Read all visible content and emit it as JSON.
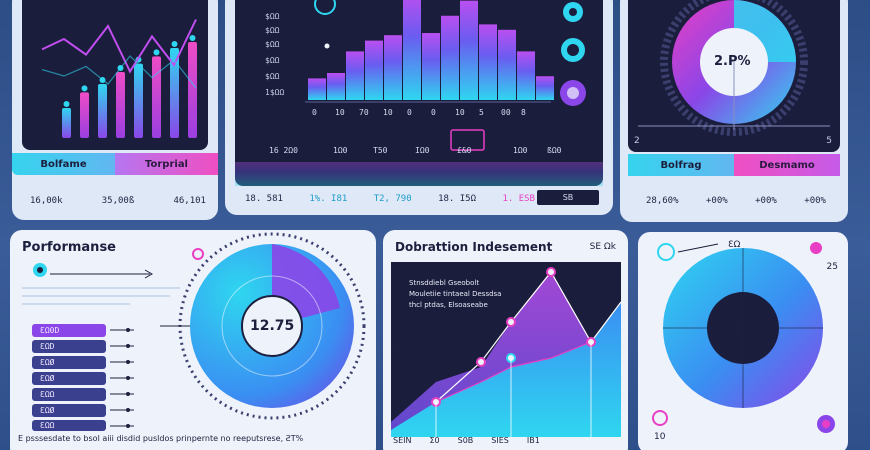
{
  "top_left": {
    "tab1": "Bolfame",
    "tab2": "Torprial",
    "values": [
      "16,00k",
      "35,00ß",
      "46,101"
    ],
    "bars": [
      0.25,
      0.38,
      0.45,
      0.55,
      0.62,
      0.68,
      0.75,
      0.8
    ],
    "line": [
      0.62,
      0.7,
      0.58,
      0.8,
      0.45,
      0.72,
      0.5,
      0.85
    ]
  },
  "top_mid": {
    "ylabels": [
      "$ΩΩ",
      "$ΩΩ",
      "$ΩΩ",
      "$ΩΩ",
      "$ΩΩ",
      "1$ΩΩ"
    ],
    "bar_values": [
      0.2,
      0.25,
      0.45,
      0.55,
      0.6,
      0.98,
      0.62,
      0.78,
      0.92,
      0.7,
      0.65,
      0.45,
      0.22
    ],
    "xlabels": [
      "0",
      "10",
      "70",
      "10",
      "0",
      "0",
      "10",
      "5",
      "00",
      "8"
    ],
    "chips": [
      "16 2Ω0",
      "1Ω0",
      "T50",
      "IΩ0",
      "£&0",
      "1Ω0",
      "ßΩ0"
    ],
    "values": [
      "18. 581",
      "1%. I81",
      "T2, 790",
      "18. I5Ω",
      "1. ESB"
    ],
    "badge": "SB"
  },
  "top_right": {
    "center_value": "2.P%",
    "scale_left": "2",
    "scale_right": "5",
    "tab1": "Bolfrag",
    "tab2": "Desmamo",
    "values": [
      "28,60%",
      "+00%",
      "+00%",
      "+00%"
    ]
  },
  "bottom_left": {
    "title": "Porformanse",
    "center_value": "12.75",
    "legend": [
      "ƐΩ0D",
      "ƐΩD",
      "ƐΩØ",
      "ƐΩØ",
      "ƐΩΩ",
      "ƐΩØ",
      "ƐΩΩ"
    ],
    "footer": "E psssesdate to bsol aiii disdid pusldos prinpernte no reeputsrese, ƧT%"
  },
  "bottom_mid": {
    "title": "Dobrattion Indesement",
    "top_right": "SE Ωk",
    "description": "Stnsddiebl Gseobolt Mouletiie tintaeal Dessdsa thcl ptdas, Elsoaseabe",
    "footer": [
      "SEIN",
      "Σ0",
      "S0B",
      "SIES",
      "IB1"
    ]
  },
  "bottom_right": {
    "corner_value": "ƐΩ",
    "tick": "25",
    "bottom_value": "10"
  },
  "colors": {
    "cyan": "#2fd6f0",
    "blue": "#3a8ef2",
    "purple": "#8a46e8",
    "magenta": "#e83fc4",
    "dark": "#1b1d3c"
  }
}
